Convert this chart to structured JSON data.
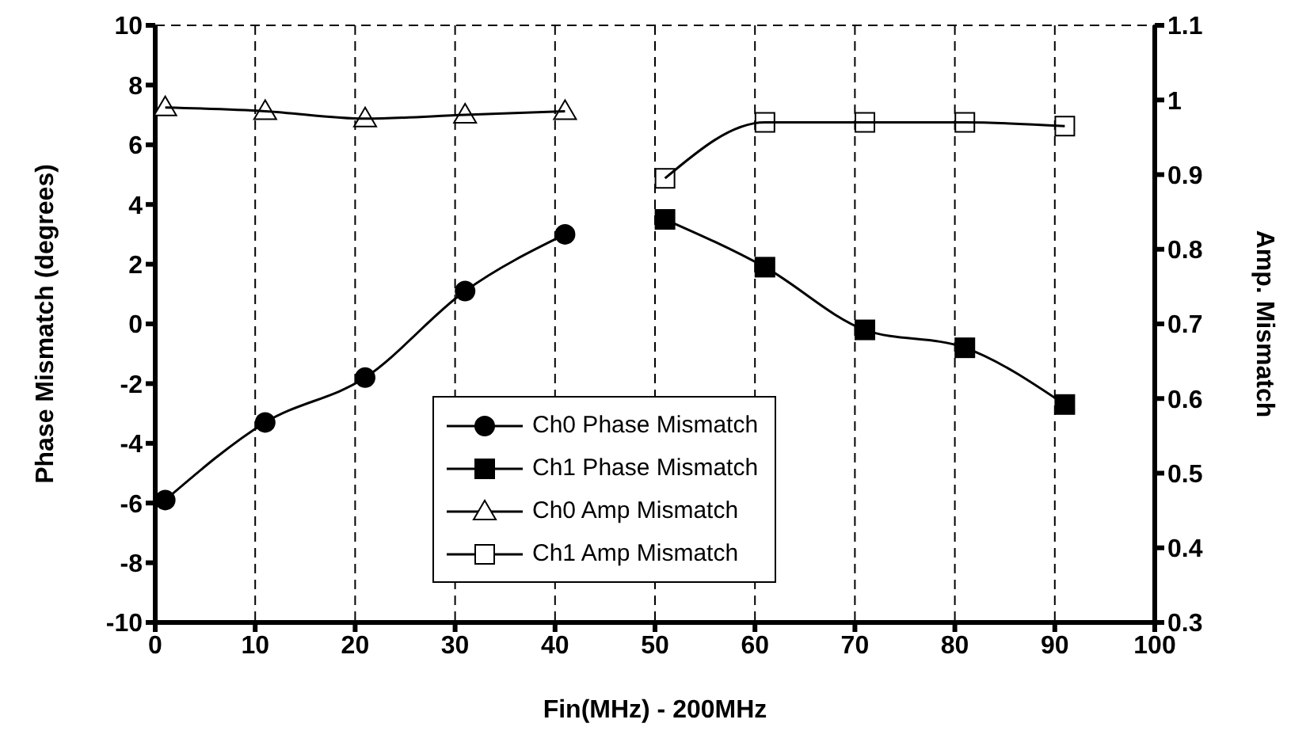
{
  "chart_data": {
    "type": "line",
    "xlabel": "Fin(MHz) - 200MHz",
    "ylabel": "Phase Mismatch (degrees)",
    "y2label": "Amp. Mismatch",
    "xlim": [
      0,
      100
    ],
    "xticks": [
      0,
      10,
      20,
      30,
      40,
      50,
      60,
      70,
      80,
      90,
      100
    ],
    "ylim": [
      -10,
      10
    ],
    "yticks": [
      -10,
      -8,
      -6,
      -4,
      -2,
      0,
      2,
      4,
      6,
      8,
      10
    ],
    "y2lim": [
      0.3,
      1.1
    ],
    "y2ticks": [
      0.3,
      0.4,
      0.5,
      0.6,
      0.7,
      0.8,
      0.9,
      1,
      1.1
    ],
    "grid": true,
    "legend": "bottom",
    "line_style": "solid",
    "series": [
      {
        "name": "Ch0 Phase Mismatch",
        "color": "#000000",
        "marker": "circle",
        "x": [
          1,
          11,
          21,
          31,
          41
        ],
        "values": [
          -5.9,
          -3.3,
          -1.8,
          1.1,
          3.0
        ]
      },
      {
        "name": "Ch1 Phase Mismatch",
        "color": "#000000",
        "marker": "square",
        "x": [
          51,
          61,
          71,
          81,
          91
        ],
        "values": [
          3.5,
          1.9,
          -0.2,
          -0.8,
          -2.7
        ]
      },
      {
        "name": "Ch0 Amp Mismatch",
        "color": "#000000",
        "marker": "triangle",
        "axis": "y2",
        "x": [
          1,
          11,
          21,
          31,
          41
        ],
        "values": [
          0.99,
          0.985,
          0.975,
          0.98,
          0.985
        ]
      },
      {
        "name": "Ch1 Amp Mismatch",
        "color": "#000000",
        "marker": "square",
        "axis": "y2",
        "x": [
          51,
          61,
          71,
          81,
          91
        ],
        "values": [
          0.895,
          0.97,
          0.97,
          0.97,
          0.965
        ]
      }
    ]
  }
}
